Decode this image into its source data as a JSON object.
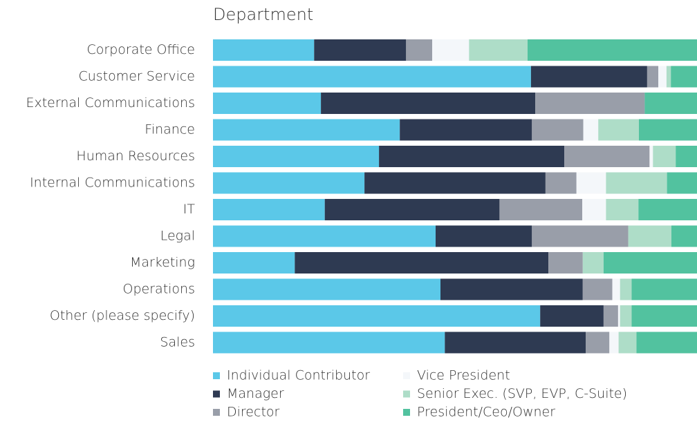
{
  "chart_data": {
    "type": "stacked-barh",
    "title": "Department",
    "categories": [
      "Corporate Office",
      "Customer Service",
      "External Communications",
      "Finance",
      "Human Resources",
      "Internal Communications",
      "IT",
      "Legal",
      "Marketing",
      "Operations",
      "Other (please specify)",
      "Sales"
    ],
    "xlim": [
      0,
      100
    ],
    "series": [
      {
        "name": "Individual Contributor",
        "color": "#5bc8e8",
        "values": [
          20.9,
          65.7,
          22.3,
          38.6,
          34.3,
          31.3,
          23.1,
          46.0,
          16.9,
          47.0,
          67.6,
          47.9
        ]
      },
      {
        "name": "Manager",
        "color": "#2e3a52",
        "values": [
          19.0,
          24.0,
          44.3,
          27.3,
          38.3,
          37.4,
          36.1,
          19.9,
          52.4,
          29.4,
          13.1,
          29.1
        ]
      },
      {
        "name": "Director",
        "color": "#999ea9",
        "values": [
          5.4,
          2.3,
          22.6,
          10.6,
          17.6,
          6.4,
          17.1,
          19.9,
          7.1,
          6.1,
          3.0,
          4.9
        ]
      },
      {
        "name": "Vice President",
        "color": "#f4f7fa",
        "values": [
          7.6,
          1.7,
          0,
          3.1,
          0.7,
          6.1,
          4.9,
          0,
          0,
          1.6,
          0.4,
          1.9
        ]
      },
      {
        "name": "Senior Exec. (SVP, EVP, C-Suite)",
        "color": "#aeddc8",
        "values": [
          12.1,
          0.9,
          0,
          8.4,
          4.7,
          12.6,
          6.7,
          8.9,
          4.3,
          2.4,
          2.4,
          3.7
        ]
      },
      {
        "name": "President/Ceo/Owner",
        "color": "#52c29f",
        "values": [
          35.0,
          5.4,
          10.8,
          12.0,
          4.4,
          6.2,
          12.1,
          5.3,
          19.3,
          13.5,
          13.5,
          12.5
        ]
      }
    ],
    "legend": "bottom"
  }
}
